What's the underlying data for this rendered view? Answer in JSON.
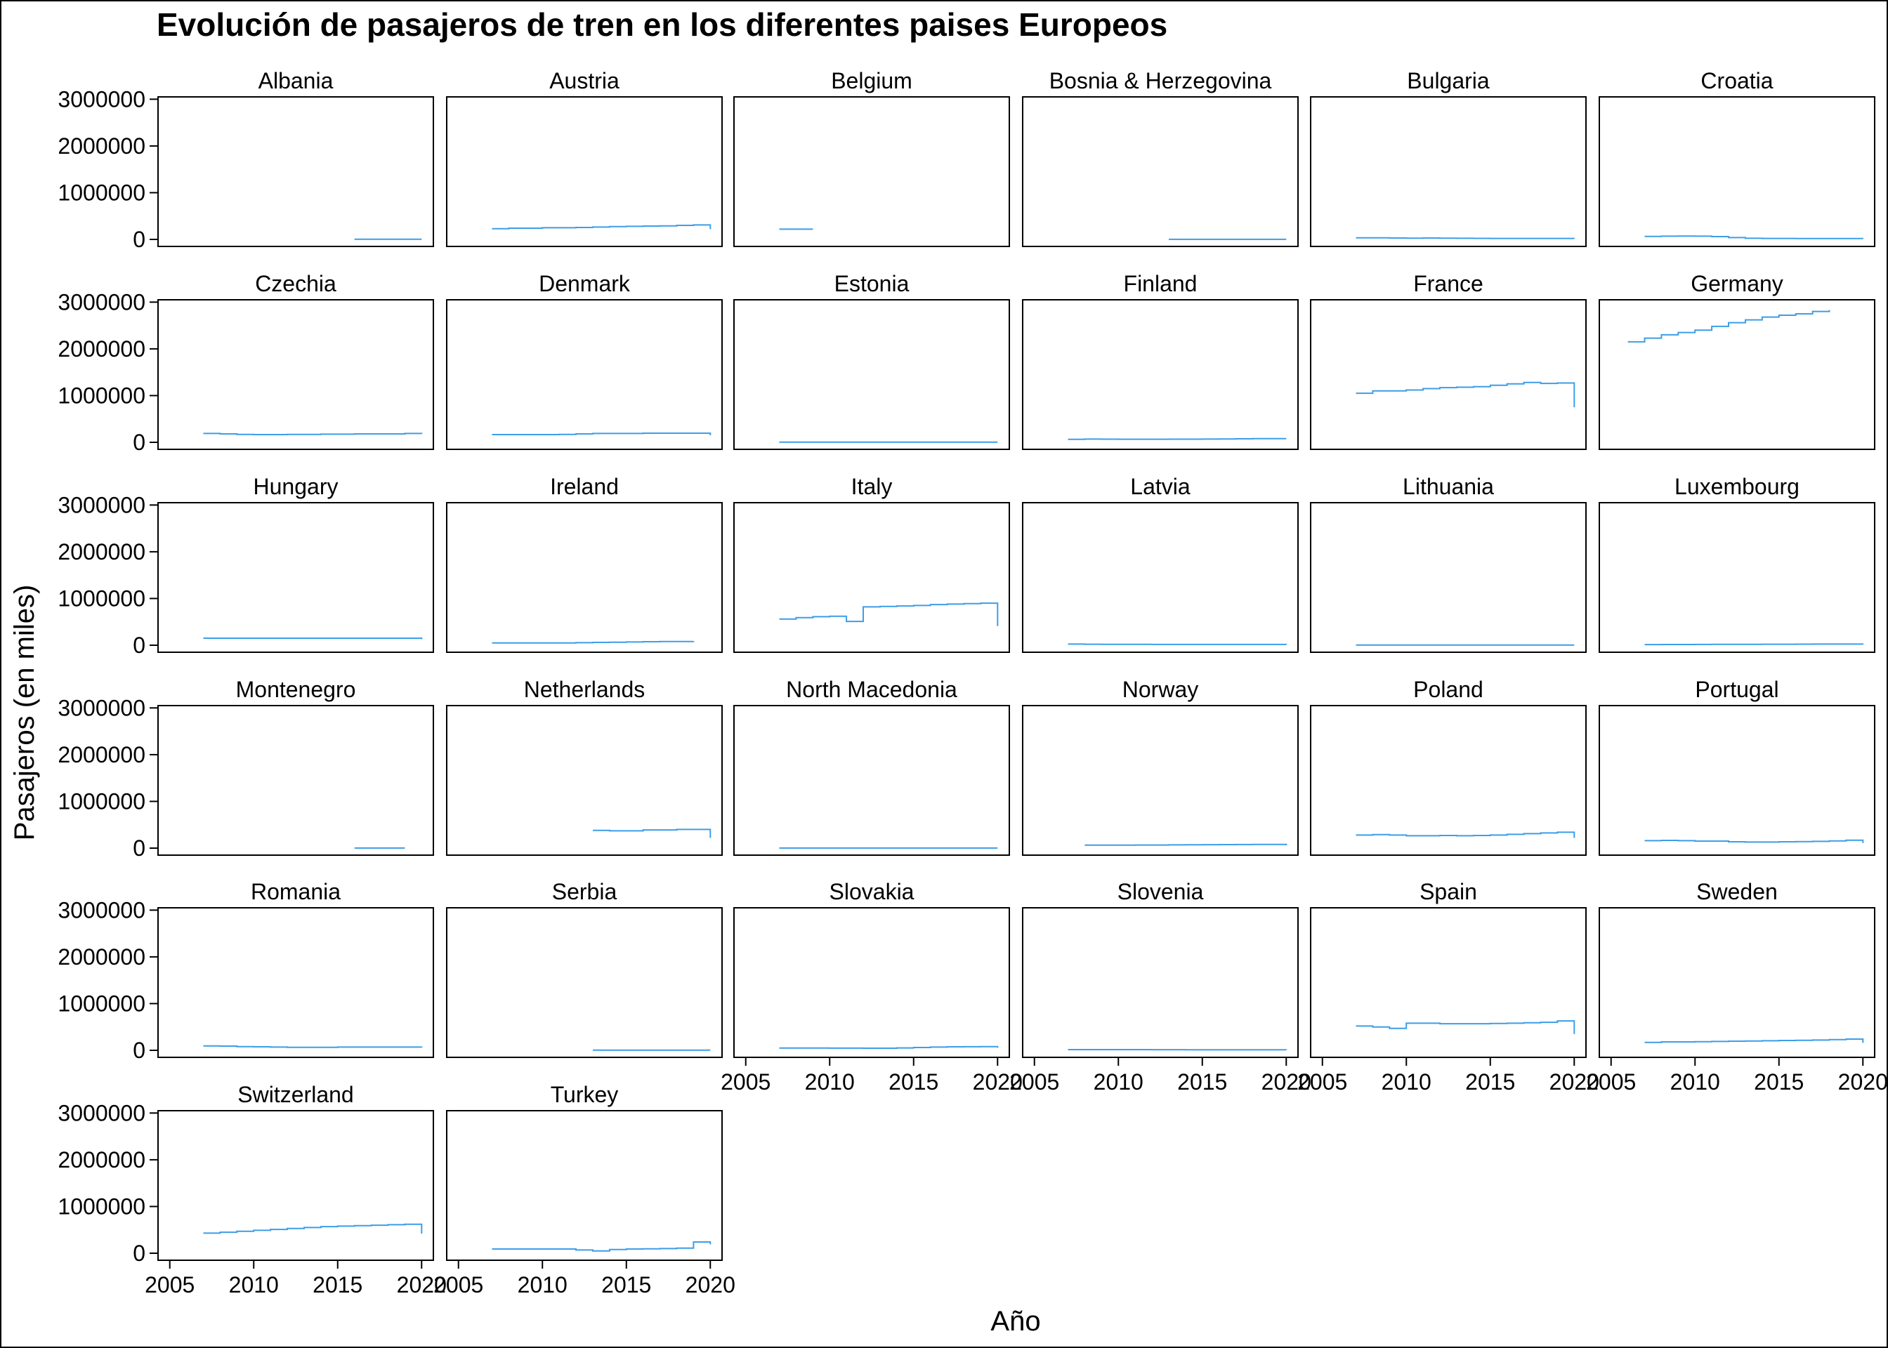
{
  "chart_data": {
    "type": "line",
    "title": "Evolución de pasajeros de tren en los diferentes paises Europeos",
    "xlabel": "Año",
    "ylabel": "Pasajeros (en miles)",
    "x_ticks": [
      "2005",
      "2010",
      "2015",
      "2020"
    ],
    "y_ticks": [
      "0",
      "1000000",
      "2000000",
      "3000000"
    ],
    "xlim": [
      2004.3,
      2020.7
    ],
    "ylim": [
      -150000,
      3050000
    ],
    "line_color": "#3c9ee8",
    "panels": [
      {
        "name": "Albania",
        "x": [
          2016,
          2017,
          2018,
          2019,
          2020
        ],
        "y": [
          5000,
          5000,
          5000,
          5000,
          5000
        ]
      },
      {
        "name": "Austria",
        "x": [
          2007,
          2008,
          2009,
          2010,
          2011,
          2012,
          2013,
          2014,
          2015,
          2016,
          2017,
          2018,
          2019,
          2020
        ],
        "y": [
          230000,
          240000,
          240000,
          250000,
          250000,
          255000,
          265000,
          275000,
          280000,
          285000,
          290000,
          300000,
          310000,
          220000
        ]
      },
      {
        "name": "Belgium",
        "x": [
          2007,
          2008,
          2009
        ],
        "y": [
          220000,
          220000,
          220000
        ]
      },
      {
        "name": "Bosnia & Herzegovina",
        "x": [
          2013,
          2014,
          2015,
          2016,
          2017,
          2018,
          2019,
          2020
        ],
        "y": [
          1000,
          1000,
          1000,
          1000,
          1000,
          1000,
          1000,
          1000
        ]
      },
      {
        "name": "Bulgaria",
        "x": [
          2007,
          2008,
          2009,
          2010,
          2011,
          2012,
          2013,
          2014,
          2015,
          2016,
          2017,
          2018,
          2019,
          2020
        ],
        "y": [
          35000,
          33000,
          30000,
          28000,
          30000,
          28000,
          25000,
          23000,
          22000,
          21000,
          21000,
          21000,
          21000,
          19000
        ]
      },
      {
        "name": "Croatia",
        "x": [
          2007,
          2008,
          2009,
          2010,
          2011,
          2012,
          2013,
          2014,
          2015,
          2016,
          2017,
          2018,
          2019,
          2020
        ],
        "y": [
          65000,
          70000,
          73000,
          70000,
          60000,
          40000,
          25000,
          22000,
          22000,
          20000,
          20000,
          19000,
          20000,
          18000
        ]
      },
      {
        "name": "Czechia",
        "x": [
          2007,
          2008,
          2009,
          2010,
          2011,
          2012,
          2013,
          2014,
          2015,
          2016,
          2017,
          2018,
          2019,
          2020
        ],
        "y": [
          190000,
          180000,
          170000,
          165000,
          165000,
          170000,
          170000,
          175000,
          175000,
          180000,
          180000,
          180000,
          190000,
          180000
        ]
      },
      {
        "name": "Denmark",
        "x": [
          2007,
          2008,
          2009,
          2010,
          2011,
          2012,
          2013,
          2014,
          2015,
          2016,
          2017,
          2018,
          2019,
          2020
        ],
        "y": [
          165000,
          165000,
          165000,
          165000,
          170000,
          180000,
          190000,
          190000,
          190000,
          195000,
          195000,
          195000,
          195000,
          150000
        ]
      },
      {
        "name": "Estonia",
        "x": [
          2007,
          2008,
          2009,
          2010,
          2011,
          2012,
          2013,
          2014,
          2015,
          2016,
          2017,
          2018,
          2019,
          2020
        ],
        "y": [
          5000,
          5000,
          5000,
          5000,
          5000,
          5000,
          5000,
          5000,
          5000,
          5000,
          5000,
          5000,
          5000,
          5000
        ]
      },
      {
        "name": "Finland",
        "x": [
          2007,
          2008,
          2009,
          2010,
          2011,
          2012,
          2013,
          2014,
          2015,
          2016,
          2017,
          2018,
          2019,
          2020
        ],
        "y": [
          65000,
          70000,
          68000,
          67000,
          67000,
          67000,
          68000,
          68000,
          70000,
          72000,
          75000,
          78000,
          80000,
          80000
        ]
      },
      {
        "name": "France",
        "x": [
          2007,
          2008,
          2009,
          2010,
          2011,
          2012,
          2013,
          2014,
          2015,
          2016,
          2017,
          2018,
          2019,
          2020
        ],
        "y": [
          1050000,
          1100000,
          1100000,
          1120000,
          1150000,
          1170000,
          1180000,
          1190000,
          1220000,
          1250000,
          1280000,
          1260000,
          1270000,
          750000
        ]
      },
      {
        "name": "Germany",
        "x": [
          2006,
          2007,
          2008,
          2009,
          2010,
          2011,
          2012,
          2013,
          2014,
          2015,
          2016,
          2017,
          2018
        ],
        "y": [
          2150000,
          2230000,
          2300000,
          2350000,
          2400000,
          2480000,
          2560000,
          2620000,
          2680000,
          2720000,
          2750000,
          2800000,
          2830000
        ]
      },
      {
        "name": "Hungary",
        "x": [
          2007,
          2008,
          2009,
          2010,
          2011,
          2012,
          2013,
          2014,
          2015,
          2016,
          2017,
          2018,
          2019,
          2020
        ],
        "y": [
          150000,
          150000,
          150000,
          150000,
          150000,
          150000,
          150000,
          150000,
          150000,
          150000,
          150000,
          150000,
          150000,
          130000
        ]
      },
      {
        "name": "Ireland",
        "x": [
          2007,
          2008,
          2009,
          2010,
          2011,
          2012,
          2013,
          2014,
          2015,
          2016,
          2017,
          2018,
          2019
        ],
        "y": [
          50000,
          50000,
          50000,
          50000,
          50000,
          55000,
          60000,
          65000,
          70000,
          75000,
          80000,
          80000,
          85000
        ]
      },
      {
        "name": "Italy",
        "x": [
          2007,
          2008,
          2009,
          2010,
          2011,
          2012,
          2013,
          2014,
          2015,
          2016,
          2017,
          2018,
          2019,
          2020
        ],
        "y": [
          560000,
          590000,
          610000,
          620000,
          510000,
          820000,
          830000,
          840000,
          850000,
          870000,
          880000,
          890000,
          900000,
          410000
        ]
      },
      {
        "name": "Latvia",
        "x": [
          2007,
          2008,
          2009,
          2010,
          2011,
          2012,
          2013,
          2014,
          2015,
          2016,
          2017,
          2018,
          2019,
          2020
        ],
        "y": [
          25000,
          22000,
          20000,
          18000,
          18000,
          17000,
          17000,
          17000,
          17000,
          17000,
          17000,
          17000,
          17000,
          12000
        ]
      },
      {
        "name": "Lithuania",
        "x": [
          2007,
          2008,
          2009,
          2010,
          2011,
          2012,
          2013,
          2014,
          2015,
          2016,
          2017,
          2018,
          2019,
          2020
        ],
        "y": [
          5000,
          5000,
          5000,
          5000,
          5000,
          5000,
          5000,
          5000,
          5000,
          5000,
          5000,
          5000,
          5000,
          4000
        ]
      },
      {
        "name": "Luxembourg",
        "x": [
          2007,
          2008,
          2009,
          2010,
          2011,
          2012,
          2013,
          2014,
          2015,
          2016,
          2017,
          2018,
          2019,
          2020
        ],
        "y": [
          14000,
          15000,
          16000,
          17000,
          18000,
          19000,
          20000,
          21000,
          22000,
          23000,
          24000,
          25000,
          25000,
          20000
        ]
      },
      {
        "name": "Montenegro",
        "x": [
          2016,
          2017,
          2018,
          2019
        ],
        "y": [
          1000,
          1000,
          1000,
          1000
        ]
      },
      {
        "name": "Netherlands",
        "x": [
          2013,
          2014,
          2015,
          2016,
          2017,
          2018,
          2019,
          2020
        ],
        "y": [
          380000,
          370000,
          370000,
          390000,
          390000,
          400000,
          400000,
          220000
        ]
      },
      {
        "name": "North Macedonia",
        "x": [
          2007,
          2008,
          2009,
          2010,
          2011,
          2012,
          2013,
          2014,
          2015,
          2016,
          2017,
          2018,
          2019,
          2020
        ],
        "y": [
          1000,
          1000,
          1000,
          1000,
          1000,
          1000,
          1000,
          1000,
          1000,
          1000,
          1000,
          1000,
          1000,
          1000
        ]
      },
      {
        "name": "Norway",
        "x": [
          2008,
          2009,
          2010,
          2011,
          2012,
          2013,
          2014,
          2015,
          2016,
          2017,
          2018,
          2019,
          2020
        ],
        "y": [
          65000,
          65000,
          65000,
          66000,
          67000,
          70000,
          72000,
          74000,
          75000,
          77000,
          78000,
          80000,
          60000
        ]
      },
      {
        "name": "Poland",
        "x": [
          2007,
          2008,
          2009,
          2010,
          2011,
          2012,
          2013,
          2014,
          2015,
          2016,
          2017,
          2018,
          2019,
          2020
        ],
        "y": [
          280000,
          290000,
          280000,
          265000,
          265000,
          270000,
          265000,
          270000,
          280000,
          295000,
          310000,
          325000,
          340000,
          220000
        ]
      },
      {
        "name": "Portugal",
        "x": [
          2007,
          2008,
          2009,
          2010,
          2011,
          2012,
          2013,
          2014,
          2015,
          2016,
          2017,
          2018,
          2019,
          2020
        ],
        "y": [
          160000,
          165000,
          160000,
          150000,
          150000,
          135000,
          130000,
          130000,
          135000,
          140000,
          145000,
          155000,
          170000,
          110000
        ]
      },
      {
        "name": "Romania",
        "x": [
          2007,
          2008,
          2009,
          2010,
          2011,
          2012,
          2013,
          2014,
          2015,
          2016,
          2017,
          2018,
          2019,
          2020
        ],
        "y": [
          95000,
          90000,
          80000,
          75000,
          70000,
          65000,
          65000,
          65000,
          70000,
          70000,
          70000,
          70000,
          70000,
          60000
        ]
      },
      {
        "name": "Serbia",
        "x": [
          2013,
          2014,
          2015,
          2016,
          2017,
          2018,
          2019,
          2020
        ],
        "y": [
          5000,
          5000,
          5000,
          5000,
          5000,
          5000,
          5000,
          4000
        ]
      },
      {
        "name": "Slovakia",
        "x": [
          2007,
          2008,
          2009,
          2010,
          2011,
          2012,
          2013,
          2014,
          2015,
          2016,
          2017,
          2018,
          2019,
          2020
        ],
        "y": [
          48000,
          50000,
          48000,
          47000,
          47000,
          45000,
          46000,
          52000,
          60000,
          70000,
          75000,
          77000,
          78000,
          55000
        ]
      },
      {
        "name": "Slovenia",
        "x": [
          2007,
          2008,
          2009,
          2010,
          2011,
          2012,
          2013,
          2014,
          2015,
          2016,
          2017,
          2018,
          2019,
          2020
        ],
        "y": [
          16000,
          16000,
          15000,
          15000,
          15000,
          14000,
          14000,
          13000,
          13000,
          13000,
          13000,
          13000,
          13000,
          9000
        ]
      },
      {
        "name": "Spain",
        "x": [
          2007,
          2008,
          2009,
          2010,
          2011,
          2012,
          2013,
          2014,
          2015,
          2016,
          2017,
          2018,
          2019,
          2020
        ],
        "y": [
          520000,
          500000,
          470000,
          580000,
          580000,
          570000,
          570000,
          570000,
          575000,
          580000,
          590000,
          600000,
          630000,
          350000
        ]
      },
      {
        "name": "Sweden",
        "x": [
          2007,
          2008,
          2009,
          2010,
          2011,
          2012,
          2013,
          2014,
          2015,
          2016,
          2017,
          2018,
          2019,
          2020
        ],
        "y": [
          170000,
          180000,
          180000,
          185000,
          190000,
          195000,
          200000,
          205000,
          210000,
          215000,
          220000,
          230000,
          240000,
          160000
        ]
      },
      {
        "name": "Switzerland",
        "x": [
          2007,
          2008,
          2009,
          2010,
          2011,
          2012,
          2013,
          2014,
          2015,
          2016,
          2017,
          2018,
          2019,
          2020
        ],
        "y": [
          430000,
          450000,
          470000,
          490000,
          510000,
          530000,
          550000,
          570000,
          580000,
          590000,
          600000,
          610000,
          620000,
          420000
        ]
      },
      {
        "name": "Turkey",
        "x": [
          2007,
          2008,
          2009,
          2010,
          2011,
          2012,
          2013,
          2014,
          2015,
          2016,
          2017,
          2018,
          2019,
          2020
        ],
        "y": [
          90000,
          90000,
          90000,
          90000,
          90000,
          70000,
          50000,
          80000,
          90000,
          95000,
          100000,
          110000,
          240000,
          190000
        ]
      }
    ]
  }
}
